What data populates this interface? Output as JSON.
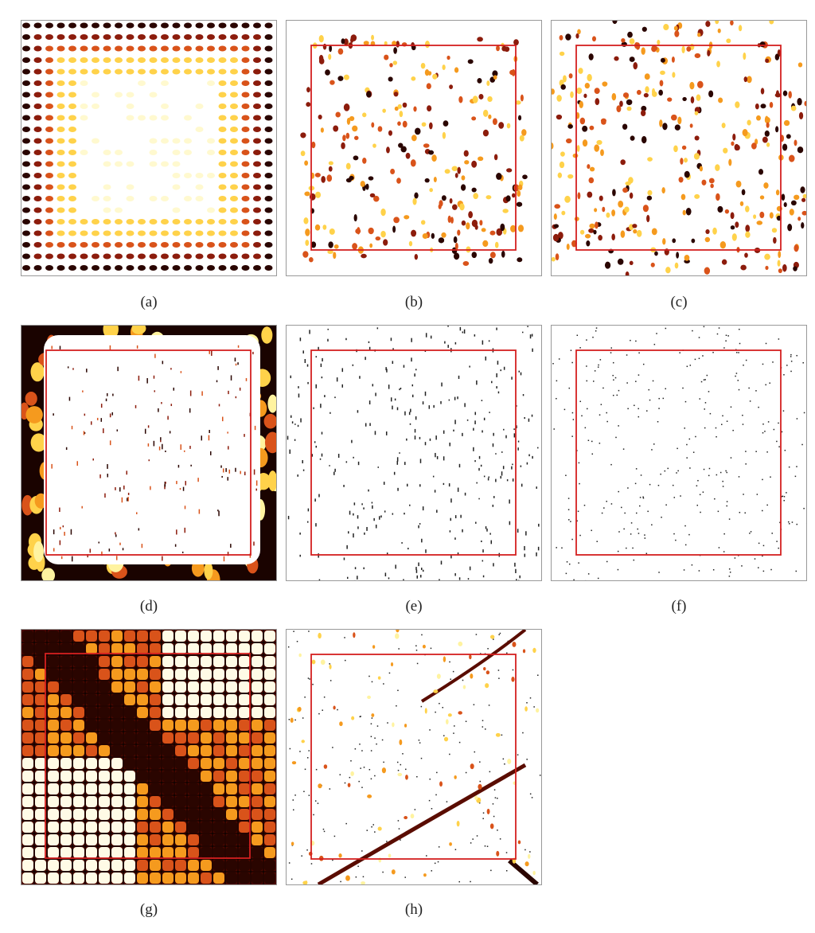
{
  "panels": [
    {
      "caption": "(a)"
    },
    {
      "caption": "(b)"
    },
    {
      "caption": "(c)"
    },
    {
      "caption": "(d)"
    },
    {
      "caption": "(e)"
    },
    {
      "caption": "(f)"
    },
    {
      "caption": "(g)"
    },
    {
      "caption": "(h)"
    }
  ]
}
